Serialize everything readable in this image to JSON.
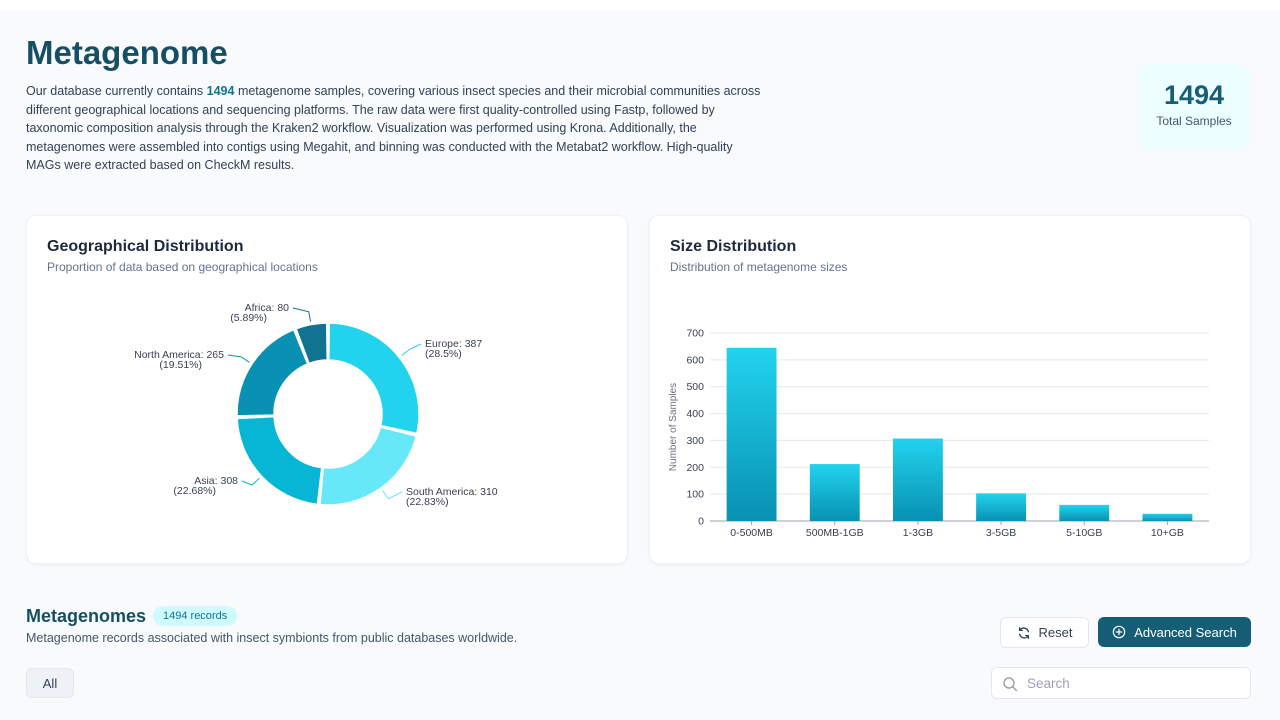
{
  "header": {
    "title": "Metagenome",
    "intro_before": "Our database currently contains ",
    "intro_count": "1494",
    "intro_after": " metagenome samples, covering various insect species and their microbial communities across different geographical locations and sequencing platforms. The raw data were first quality-controlled using Fastp, followed by taxonomic composition analysis through the Kraken2 workflow. Visualization was performed using Krona. Additionally, the metagenomes were assembled into contigs using Megahit, and binning was conducted with the Metabat2 workflow. High-quality MAGs were extracted based on CheckM results."
  },
  "stats": {
    "value": "1494",
    "label": "Total Samples"
  },
  "geo_card": {
    "title": "Geographical Distribution",
    "subtitle": "Proportion of data based on geographical locations"
  },
  "size_card": {
    "title": "Size Distribution",
    "subtitle": "Distribution of metagenome sizes"
  },
  "chart_data": [
    {
      "type": "pie",
      "title": "Geographical Distribution",
      "categories": [
        "Europe",
        "South America",
        "Asia",
        "North America",
        "Africa"
      ],
      "values": [
        387,
        310,
        308,
        265,
        80
      ],
      "labels": [
        "Europe: 387",
        "South America: 310",
        "Asia: 308",
        "North America: 265",
        "Africa: 80"
      ],
      "percents": [
        "(28.5%)",
        "(22.83%)",
        "(22.68%)",
        "(19.51%)",
        "(5.89%)"
      ],
      "colors": [
        "#22d3ee",
        "#67e8f9",
        "#06b6d4",
        "#0891b2",
        "#0e7490"
      ]
    },
    {
      "type": "bar",
      "title": "Size Distribution",
      "categories": [
        "0-500MB",
        "500MB-1GB",
        "1-3GB",
        "3-5GB",
        "5-10GB",
        "10+GB"
      ],
      "values": [
        645,
        212,
        307,
        103,
        60,
        27
      ],
      "ylabel": "Number of Samples",
      "ylim": [
        0,
        700
      ],
      "yticks": [
        0,
        100,
        200,
        300,
        400,
        500,
        600,
        700
      ],
      "grid": true,
      "color_top": "#22d3ee",
      "color_bottom": "#0891b2"
    }
  ],
  "records": {
    "title": "Metagenomes",
    "badge": "1494 records",
    "subtitle": "Metagenome records associated with insect symbionts from public databases worldwide."
  },
  "toolbar": {
    "reset_label": "Reset",
    "advanced_label": "Advanced Search"
  },
  "filters": {
    "all_label": "All"
  },
  "search": {
    "placeholder": "Search",
    "value": ""
  },
  "icons": {
    "reset": "refresh-icon",
    "advanced": "plus-circle-icon",
    "search": "search-icon"
  },
  "colors": {
    "brand": "#155e75",
    "accent": "#0e7490",
    "badge_bg": "#cffafe"
  }
}
